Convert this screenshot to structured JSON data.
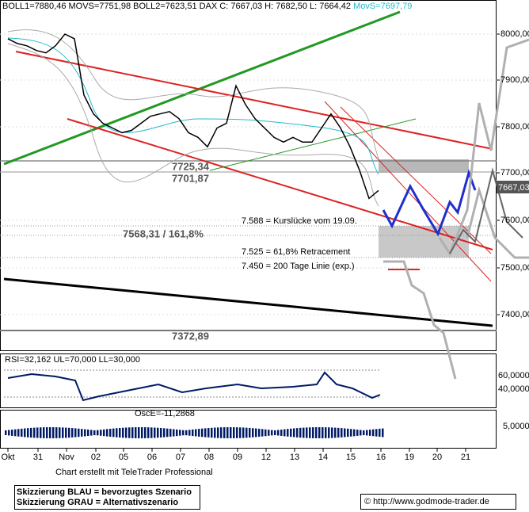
{
  "header": {
    "indicators": "BOLL1=7880,46 MOVS=7751,98 BOLL2=7623,51 DAX C: 7667,03 H: 7682,50 L: 7664,42",
    "movs": "MovS=7697,79"
  },
  "price_axis": {
    "labels": [
      "8000,00",
      "7900,00",
      "7800,00",
      "7700,00",
      "7600,00",
      "7500,00",
      "7400,00"
    ],
    "current": "7667,03"
  },
  "price_series": [
    7990,
    7980,
    7975,
    7965,
    7960,
    7975,
    8000,
    7990,
    7870,
    7830,
    7810,
    7800,
    7790,
    7795,
    7810,
    7825,
    7830,
    7835,
    7820,
    7790,
    7780,
    7760,
    7800,
    7810,
    7890,
    7850,
    7820,
    7800,
    7780,
    7770,
    7780,
    7770,
    7770,
    7800,
    7830,
    7800,
    7760,
    7710,
    7650,
    7667.03
  ],
  "annotations": {
    "level1": "7725,34",
    "level2": "7701,87",
    "gap": "7.588 = Kurslücke vom 19.09.",
    "fib": "7568,31 / 161,8%",
    "retracement": "7.525 = 61,8% Retracement",
    "ma200": "7.450 = 200 Tage Linie (exp.)",
    "level3": "7372,89"
  },
  "rsi": {
    "label": "RSI=32,162 UL=70,000 LL=30,000",
    "axis": [
      "60,0000",
      "40,0000"
    ]
  },
  "osc": {
    "label": "OscE=-11,2868",
    "axis": "5,0000"
  },
  "x_axis": [
    "Okt",
    "31",
    "Nov",
    "02",
    "05",
    "06",
    "07",
    "08",
    "09",
    "12",
    "13",
    "14",
    "15",
    "16",
    "19",
    "20",
    "21"
  ],
  "footer": {
    "credit": "Chart erstellt mit TeleTrader Professional",
    "blue": "Skizzierung BLAU = bevorzugtes Szenario",
    "gray": "Skizzierung GRAU = Alternativszenario",
    "url": "© http://www.godmode-trader.de"
  }
}
